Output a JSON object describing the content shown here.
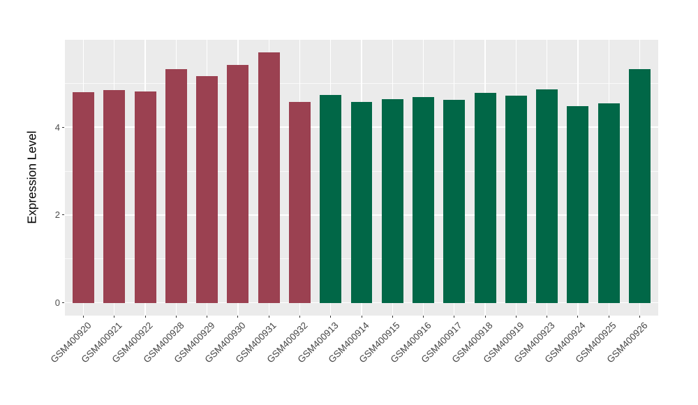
{
  "chart_data": {
    "type": "bar",
    "title": "",
    "xlabel": "",
    "ylabel": "Expression Level",
    "categories": [
      "GSM400920",
      "GSM400921",
      "GSM400922",
      "GSM400928",
      "GSM400929",
      "GSM400930",
      "GSM400931",
      "GSM400932",
      "GSM400913",
      "GSM400914",
      "GSM400915",
      "GSM400916",
      "GSM400917",
      "GSM400918",
      "GSM400919",
      "GSM400923",
      "GSM400924",
      "GSM400925",
      "GSM400926"
    ],
    "values": [
      4.8,
      4.84,
      4.81,
      5.33,
      5.17,
      5.41,
      5.71,
      4.57,
      4.74,
      4.57,
      4.64,
      4.68,
      4.62,
      4.78,
      4.72,
      4.86,
      4.48,
      4.55,
      5.33
    ],
    "groups": [
      "left",
      "left",
      "left",
      "left",
      "left",
      "left",
      "left",
      "left",
      "right",
      "right",
      "right",
      "right",
      "right",
      "right",
      "right",
      "right",
      "right",
      "right",
      "right"
    ],
    "group_colors": {
      "left": "#9B4151",
      "right": "#016747"
    },
    "ytick_labels": [
      "0",
      "2",
      "4"
    ],
    "ytick_values": [
      0,
      2,
      4
    ],
    "minor_tick_values": [
      1,
      3,
      5
    ],
    "ylim": [
      -0.29,
      5.99
    ],
    "bar_width_fraction": 0.7,
    "axis_expansion": 0.6,
    "grid": "on",
    "legend_position": "none",
    "panel_bg": "#EBEBEB",
    "grid_color": "#FFFFFF",
    "grid_minor_opacity": 0.75,
    "tick_mark_color": "#333333",
    "axis_text_color": "#454545"
  }
}
